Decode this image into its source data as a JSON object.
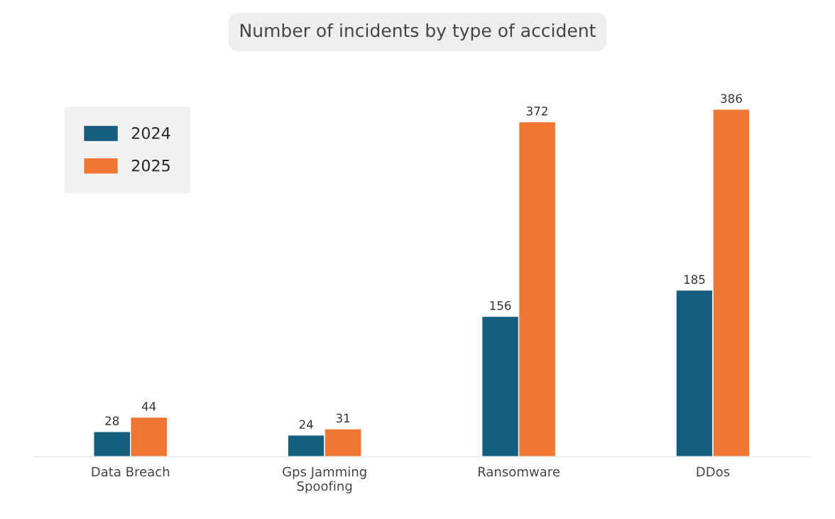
{
  "chart_data": {
    "type": "bar",
    "title": "Number of incidents by type of accident",
    "categories": [
      "Data Breach",
      "Gps Jamming\nSpoofing",
      "Ransomware",
      "DDos"
    ],
    "series": [
      {
        "name": "2024",
        "color": "#155e7e",
        "values": [
          28,
          24,
          156,
          185
        ]
      },
      {
        "name": "2025",
        "color": "#ee7733",
        "values": [
          44,
          31,
          372,
          386
        ]
      }
    ],
    "data_labels": true,
    "legend": "top left",
    "grid": false
  }
}
